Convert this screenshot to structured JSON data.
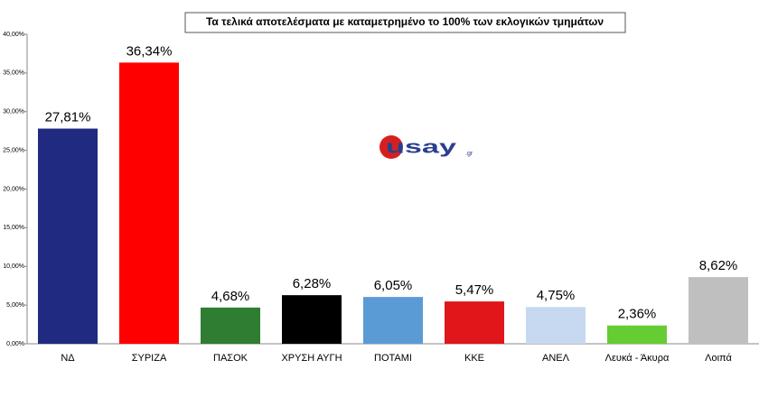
{
  "chart_data": {
    "type": "bar",
    "title": "Τα τελικά αποτελέσματα με καταμετρημένο το 100% των εκλογικών τμημάτων",
    "categories": [
      "ΝΔ",
      "ΣΥΡΙΖΑ",
      "ΠΑΣΟΚ",
      "ΧΡΥΣΗ ΑΥΓΗ",
      "ΠΟΤΑΜΙ",
      "ΚΚΕ",
      "ΑΝΕΛ",
      "Λευκά - Άκυρα",
      "Λοιπά"
    ],
    "values": [
      27.81,
      36.34,
      4.68,
      6.28,
      6.05,
      5.47,
      4.75,
      2.36,
      8.62
    ],
    "value_labels": [
      "27,81%",
      "36,34%",
      "4,68%",
      "6,28%",
      "6,05%",
      "5,47%",
      "4,75%",
      "2,36%",
      "8,62%"
    ],
    "colors": [
      "#1f2a80",
      "#ff0000",
      "#2f7d32",
      "#000000",
      "#5b9bd5",
      "#e0161b",
      "#c6d9f1",
      "#66cc33",
      "#bfbfbf"
    ],
    "ylim": [
      0,
      40
    ],
    "yticks": [
      {
        "value": 0,
        "label": "0,00%"
      },
      {
        "value": 5,
        "label": "5,00%"
      },
      {
        "value": 10,
        "label": "10,00%"
      },
      {
        "value": 15,
        "label": "15,00%"
      },
      {
        "value": 20,
        "label": "20,00%"
      },
      {
        "value": 25,
        "label": "25,00%"
      },
      {
        "value": 30,
        "label": "30,00%"
      },
      {
        "value": 35,
        "label": "35,00%"
      },
      {
        "value": 40,
        "label": "40,00%"
      }
    ],
    "grid": false,
    "logo_text": "usay",
    "logo_domain": ".gr"
  }
}
